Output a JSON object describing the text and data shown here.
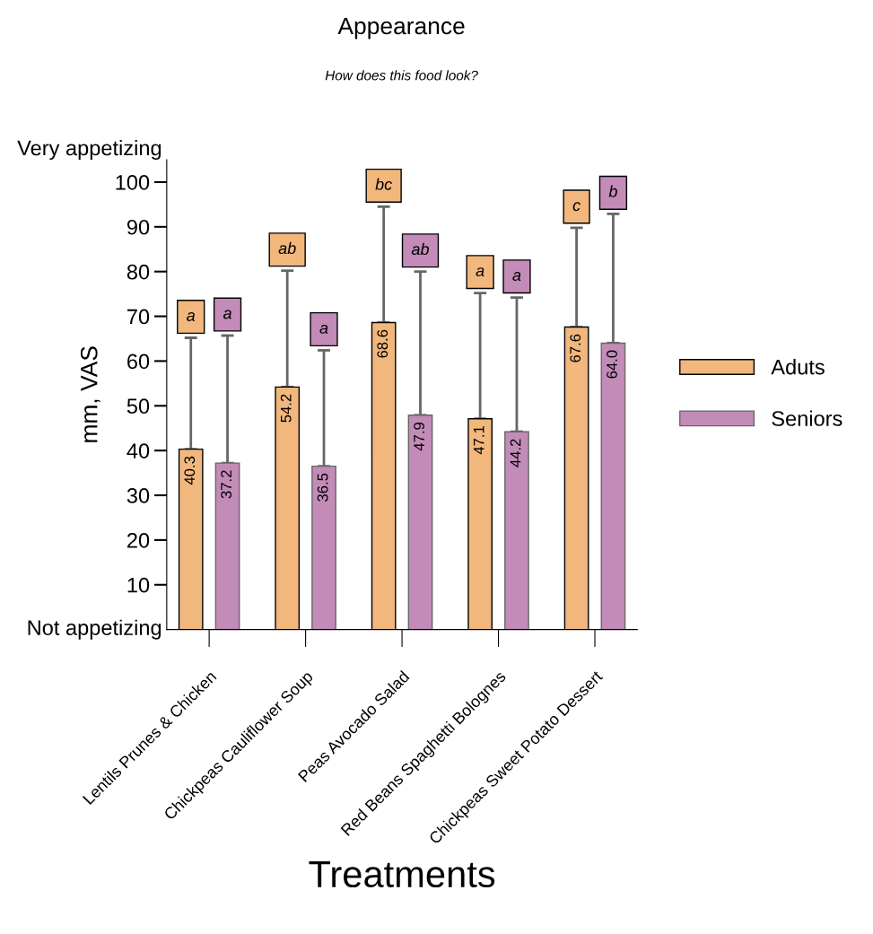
{
  "chart_data": {
    "type": "bar",
    "title": "Appearance",
    "subtitle": "How does this food look?",
    "xlabel": "Treatments",
    "ylabel": "mm, VAS",
    "categories": [
      "Lentils Prunes & Chicken",
      "Chickpeas Cauliflower Soup",
      "Peas Avocado Salad",
      "Red Beans Spaghetti Bolognes",
      "Chickpeas Sweet Potato Dessert"
    ],
    "series": [
      {
        "name": "Aduts",
        "color": "#f2b77d",
        "values": [
          40.3,
          54.2,
          68.6,
          47.1,
          67.6
        ],
        "errors": [
          [
            40.3,
            65.2
          ],
          [
            54.2,
            80.2
          ],
          [
            68.6,
            94.5
          ],
          [
            47.1,
            75.2
          ],
          [
            67.6,
            89.8
          ]
        ],
        "value_labels": [
          "40.3",
          "54.2",
          "68.6",
          "47.1",
          "67.6"
        ]
      },
      {
        "name": "Seniors",
        "color": "#c28bb8",
        "values": [
          37.2,
          36.5,
          47.9,
          44.2,
          64.0
        ],
        "errors": [
          [
            37.2,
            65.7
          ],
          [
            36.5,
            62.4
          ],
          [
            47.9,
            80.0
          ],
          [
            44.2,
            74.2
          ],
          [
            64.0,
            92.9
          ]
        ],
        "value_labels": [
          "37.2",
          "36.5",
          "47.9",
          "44.2",
          "64.0"
        ]
      }
    ],
    "ylim": [
      0,
      105
    ],
    "yticks": [
      10,
      20,
      30,
      40,
      50,
      60,
      70,
      80,
      90,
      100
    ],
    "legend": "right",
    "grid": false,
    "annotations": [
      "Very appetizing",
      "Not appetizing",
      "a",
      "a",
      "ab",
      "a",
      "bc",
      "ab",
      "a",
      "a",
      "c",
      "b"
    ]
  }
}
